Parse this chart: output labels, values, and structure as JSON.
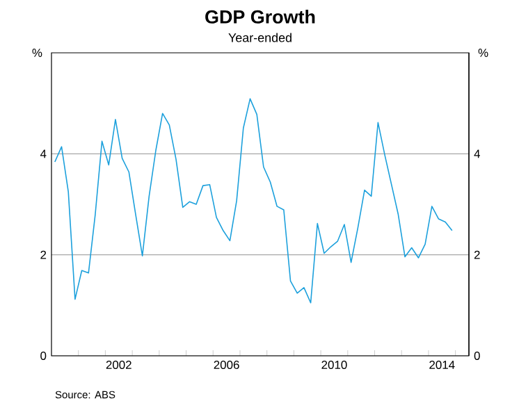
{
  "chart_data": {
    "type": "line",
    "title": "GDP Growth",
    "subtitle": "Year-ended",
    "ylabel": "%",
    "y2label": "%",
    "x": [
      2000.125,
      2000.375,
      2000.625,
      2000.875,
      2001.125,
      2001.375,
      2001.625,
      2001.875,
      2002.125,
      2002.375,
      2002.625,
      2002.875,
      2003.125,
      2003.375,
      2003.625,
      2003.875,
      2004.125,
      2004.375,
      2004.625,
      2004.875,
      2005.125,
      2005.375,
      2005.625,
      2005.875,
      2006.125,
      2006.375,
      2006.625,
      2006.875,
      2007.125,
      2007.375,
      2007.625,
      2007.875,
      2008.125,
      2008.375,
      2008.625,
      2008.875,
      2009.125,
      2009.375,
      2009.625,
      2009.875,
      2010.125,
      2010.375,
      2010.625,
      2010.875,
      2011.125,
      2011.375,
      2011.625,
      2011.875,
      2012.125,
      2012.375,
      2012.625,
      2012.875,
      2013.125,
      2013.375,
      2013.625,
      2013.875,
      2014.125,
      2014.375,
      2014.625,
      2014.875
    ],
    "series": [
      {
        "color": "#1ca0dc",
        "values": [
          3.84,
          4.14,
          3.25,
          1.12,
          1.69,
          1.64,
          2.8,
          4.25,
          3.78,
          4.68,
          3.91,
          3.64,
          2.8,
          1.98,
          3.16,
          4.07,
          4.8,
          4.57,
          3.89,
          2.94,
          3.05,
          3.0,
          3.37,
          3.39,
          2.74,
          2.48,
          2.28,
          3.07,
          4.51,
          5.09,
          4.78,
          3.74,
          3.44,
          2.96,
          2.89,
          1.48,
          1.24,
          1.35,
          1.05,
          2.62,
          2.03,
          2.16,
          2.27,
          2.6,
          1.85,
          2.53,
          3.28,
          3.16,
          4.62,
          3.98,
          3.39,
          2.8,
          1.96,
          2.14,
          1.94,
          2.21,
          2.96,
          2.71,
          2.65,
          2.48
        ]
      }
    ],
    "xlim": [
      2000,
      2015.5
    ],
    "xticks": [
      {
        "value": 2001,
        "label": null
      },
      {
        "value": 2002,
        "label": null
      },
      {
        "value": 2002.5,
        "label": "2002"
      },
      {
        "value": 2003,
        "label": null
      },
      {
        "value": 2004,
        "label": null
      },
      {
        "value": 2005,
        "label": null
      },
      {
        "value": 2006,
        "label": null
      },
      {
        "value": 2006.5,
        "label": "2006"
      },
      {
        "value": 2007,
        "label": null
      },
      {
        "value": 2008,
        "label": null
      },
      {
        "value": 2009,
        "label": null
      },
      {
        "value": 2010,
        "label": null
      },
      {
        "value": 2010.5,
        "label": "2010"
      },
      {
        "value": 2011,
        "label": null
      },
      {
        "value": 2012,
        "label": null
      },
      {
        "value": 2013,
        "label": null
      },
      {
        "value": 2014,
        "label": null
      },
      {
        "value": 2014.5,
        "label": "2014"
      },
      {
        "value": 2015,
        "label": null
      }
    ],
    "ylim": [
      0,
      6
    ],
    "yticks": [
      0,
      2,
      4
    ],
    "y2lim": [
      0,
      6
    ],
    "y2ticks": [
      0,
      2,
      4
    ],
    "grid": "y",
    "annotations": [
      "Source:   ABS"
    ]
  }
}
